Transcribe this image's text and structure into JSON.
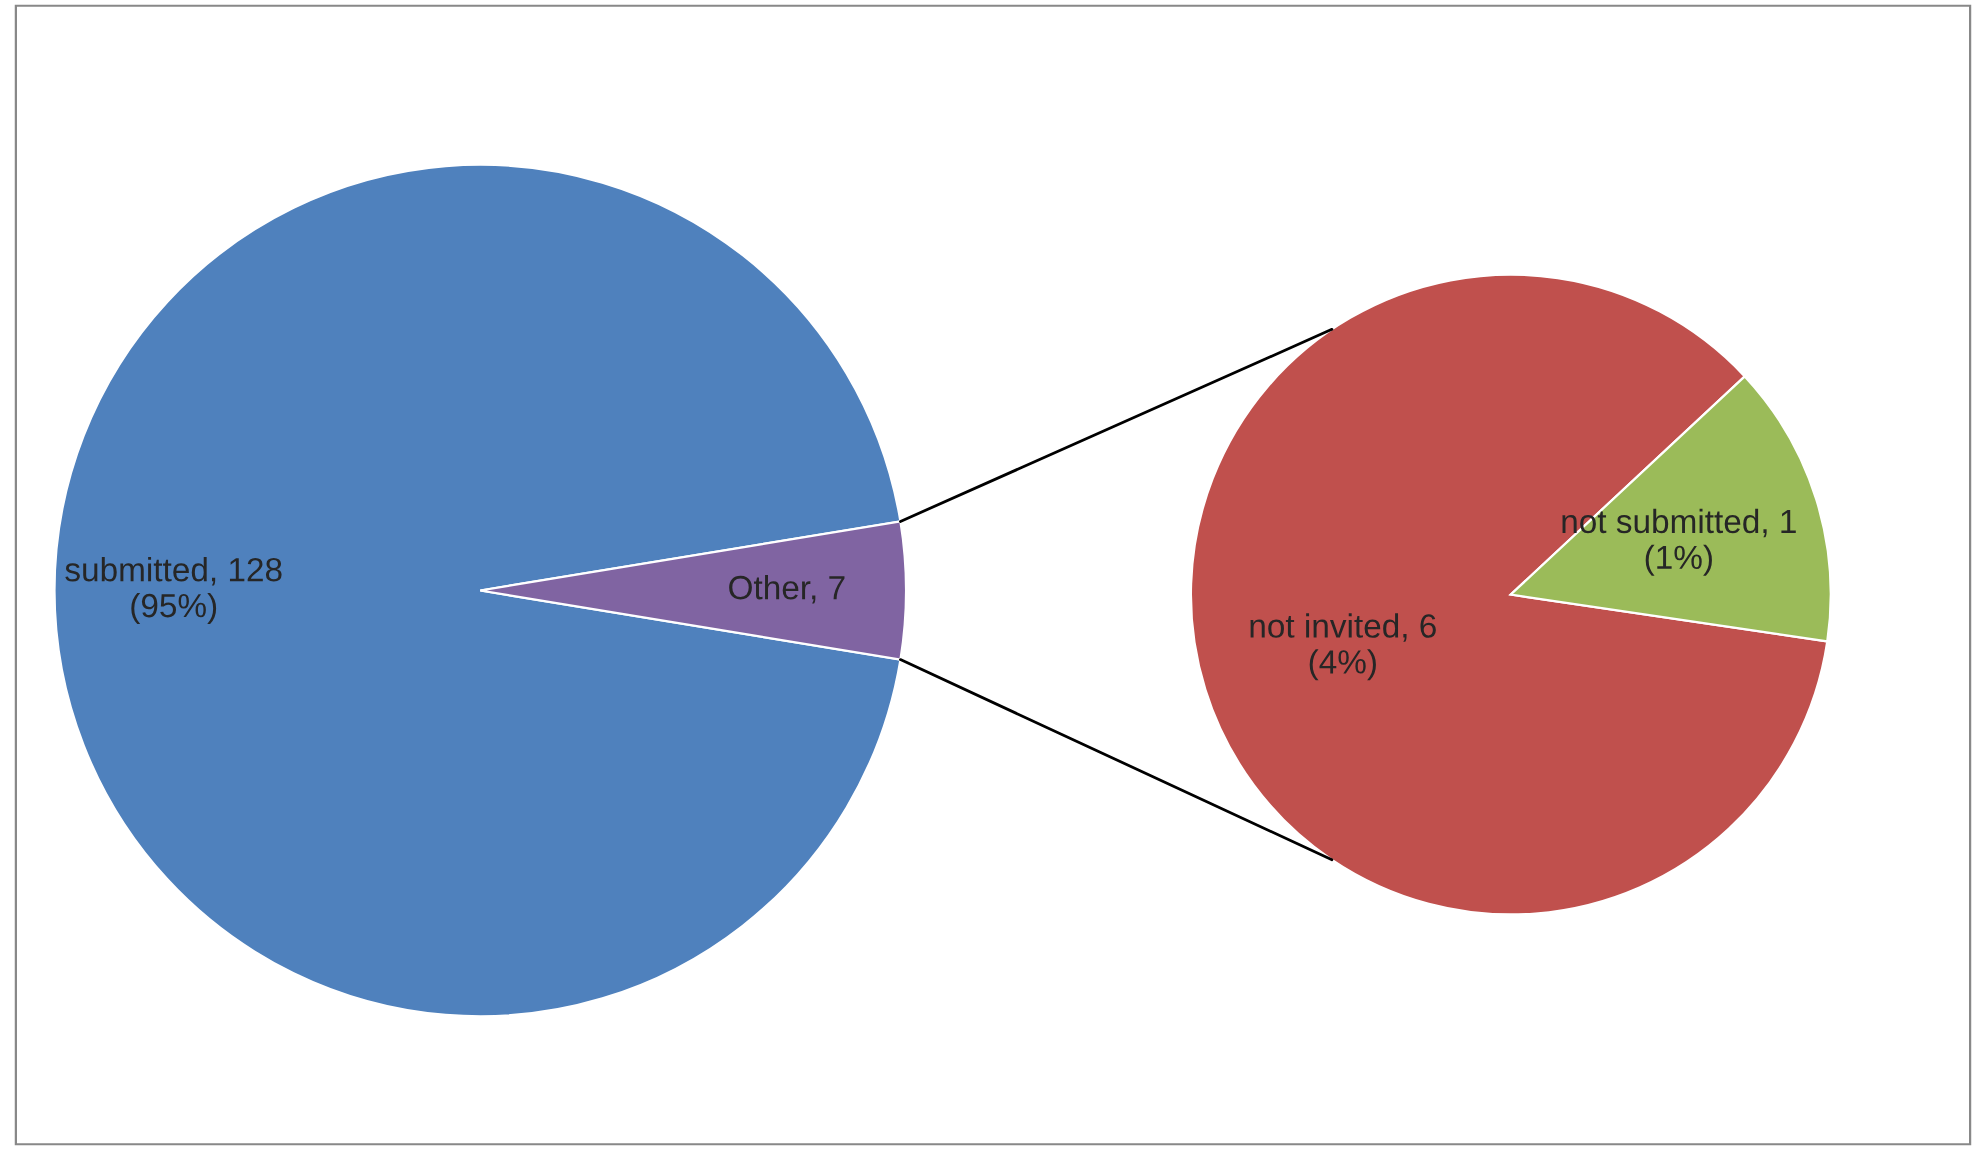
{
  "chart_data": [
    {
      "type": "pie",
      "categories": [
        "submitted",
        "Other"
      ],
      "values": [
        128,
        7
      ],
      "colors": [
        "#4f81bd",
        "#8064a2"
      ],
      "value_labels": [
        "128\n(95%)",
        "7"
      ]
    },
    {
      "type": "pie",
      "categories": [
        "not invited",
        "not submitted"
      ],
      "values": [
        6,
        1
      ],
      "colors": [
        "#c0504d",
        "#9bbb59"
      ],
      "value_labels": [
        "6\n(4%)",
        "1\n(1%)"
      ]
    }
  ]
}
